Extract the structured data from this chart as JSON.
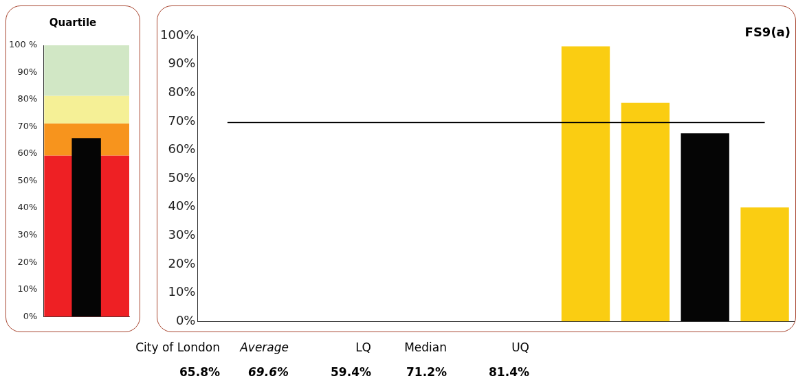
{
  "chart_data": [
    {
      "type": "bar",
      "title": "Quartile",
      "categories": [
        null
      ],
      "values": [
        65.8
      ],
      "color": "#050505",
      "ylim": [
        0,
        100
      ],
      "yticks": [
        {
          "value": 0,
          "label": "0%"
        },
        {
          "value": 10,
          "label": "10%"
        },
        {
          "value": 20,
          "label": "20%"
        },
        {
          "value": 30,
          "label": "30%"
        },
        {
          "value": 40,
          "label": "40%"
        },
        {
          "value": 50,
          "label": "50%"
        },
        {
          "value": 60,
          "label": "60%"
        },
        {
          "value": 70,
          "label": "70%"
        },
        {
          "value": 80,
          "label": "80%"
        },
        {
          "value": 90,
          "label": "90%"
        },
        {
          "value": 100,
          "label": "100 %"
        }
      ],
      "bands": [
        {
          "axis": "y",
          "from": 0,
          "to": 59.4,
          "color": "#ee2024"
        },
        {
          "axis": "y",
          "from": 59.4,
          "to": 71.2,
          "color": "#f7941d"
        },
        {
          "axis": "y",
          "from": 71.2,
          "to": 81.4,
          "color": "#f5f096"
        },
        {
          "axis": "y",
          "from": 81.4,
          "to": 100,
          "color": "#d1e7c5"
        }
      ]
    },
    {
      "type": "bar",
      "title": "FS9(a)",
      "categories": [
        null,
        null,
        null,
        null,
        null,
        null,
        null,
        null,
        null,
        null
      ],
      "values": [
        null,
        null,
        null,
        null,
        null,
        null,
        96.3,
        76.5,
        65.8,
        39.9
      ],
      "colors": [
        "#facd12",
        "#facd12",
        "#facd12",
        "#facd12",
        "#facd12",
        "#facd12",
        "#facd12",
        "#facd12",
        "#050505",
        "#facd12"
      ],
      "ylim": [
        0,
        100
      ],
      "yticks": [
        {
          "value": 0,
          "label": "0%"
        },
        {
          "value": 10,
          "label": "10%"
        },
        {
          "value": 20,
          "label": "20%"
        },
        {
          "value": 30,
          "label": "30%"
        },
        {
          "value": 40,
          "label": "40%"
        },
        {
          "value": 50,
          "label": "50%"
        },
        {
          "value": 60,
          "label": "60%"
        },
        {
          "value": 70,
          "label": "70%"
        },
        {
          "value": 80,
          "label": "80%"
        },
        {
          "value": 90,
          "label": "90%"
        },
        {
          "value": 100,
          "label": "100%"
        }
      ],
      "ref_lines": [
        {
          "axis": "y",
          "value": 69.6,
          "color": "#000000"
        }
      ],
      "annotations": [
        "City of London",
        "Average",
        "LQ",
        "Median",
        "UQ",
        "65.8%",
        "69.6%",
        "59.4%",
        "71.2%",
        "81.4%"
      ]
    }
  ]
}
